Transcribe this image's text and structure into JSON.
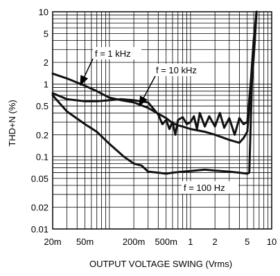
{
  "chart_data": {
    "type": "line",
    "xlabel": "OUTPUT VOLTAGE SWING (Vrms)",
    "ylabel": "THD+N (%)",
    "x_scale": "log",
    "y_scale": "log",
    "xlim": [
      0.02,
      10
    ],
    "ylim": [
      0.01,
      10
    ],
    "grid": true,
    "x_ticks": [
      {
        "value": 0.02,
        "label": "20m"
      },
      {
        "value": 0.05,
        "label": "50m"
      },
      {
        "value": 0.2,
        "label": "200m"
      },
      {
        "value": 0.5,
        "label": "500m"
      },
      {
        "value": 1,
        "label": "1"
      },
      {
        "value": 2,
        "label": "2"
      },
      {
        "value": 5,
        "label": "5"
      },
      {
        "value": 10,
        "label": "10"
      }
    ],
    "y_ticks": [
      {
        "value": 0.01,
        "label": "0.01"
      },
      {
        "value": 0.02,
        "label": "0.02"
      },
      {
        "value": 0.05,
        "label": "0.05"
      },
      {
        "value": 0.1,
        "label": "0.1"
      },
      {
        "value": 0.2,
        "label": "0.2"
      },
      {
        "value": 0.5,
        "label": "0.5"
      },
      {
        "value": 1,
        "label": "1"
      },
      {
        "value": 2,
        "label": "2"
      },
      {
        "value": 5,
        "label": "5"
      },
      {
        "value": 10,
        "label": "10"
      }
    ],
    "series": [
      {
        "name": "f = 1 kHz",
        "color": "#111111",
        "points": [
          [
            0.02,
            1.4
          ],
          [
            0.03,
            1.2
          ],
          [
            0.05,
            0.95
          ],
          [
            0.07,
            0.8
          ],
          [
            0.1,
            0.65
          ],
          [
            0.14,
            0.6
          ],
          [
            0.2,
            0.56
          ],
          [
            0.3,
            0.47
          ],
          [
            0.4,
            0.39
          ],
          [
            0.5,
            0.34
          ],
          [
            0.6,
            0.29
          ],
          [
            0.7,
            0.27
          ],
          [
            0.8,
            0.26
          ],
          [
            1.0,
            0.24
          ],
          [
            1.5,
            0.22
          ],
          [
            2.0,
            0.2
          ],
          [
            3.0,
            0.17
          ],
          [
            4.0,
            0.155
          ],
          [
            4.5,
            0.18
          ],
          [
            5.0,
            0.22
          ],
          [
            5.5,
            0.8
          ],
          [
            6.0,
            3.0
          ],
          [
            6.5,
            10
          ]
        ]
      },
      {
        "name": "f = 10 kHz",
        "color": "#111111",
        "points": [
          [
            0.02,
            0.75
          ],
          [
            0.03,
            0.62
          ],
          [
            0.05,
            0.58
          ],
          [
            0.07,
            0.58
          ],
          [
            0.1,
            0.6
          ],
          [
            0.14,
            0.62
          ],
          [
            0.2,
            0.6
          ],
          [
            0.3,
            0.56
          ],
          [
            0.4,
            0.38
          ],
          [
            0.45,
            0.28
          ],
          [
            0.5,
            0.32
          ],
          [
            0.55,
            0.24
          ],
          [
            0.6,
            0.3
          ],
          [
            0.65,
            0.2
          ],
          [
            0.7,
            0.32
          ],
          [
            0.8,
            0.35
          ],
          [
            0.9,
            0.28
          ],
          [
            1.0,
            0.3
          ],
          [
            1.1,
            0.36
          ],
          [
            1.2,
            0.24
          ],
          [
            1.3,
            0.4
          ],
          [
            1.5,
            0.26
          ],
          [
            1.7,
            0.36
          ],
          [
            2.0,
            0.26
          ],
          [
            2.3,
            0.4
          ],
          [
            2.6,
            0.25
          ],
          [
            3.0,
            0.34
          ],
          [
            3.5,
            0.2
          ],
          [
            4.0,
            0.34
          ],
          [
            4.5,
            0.28
          ],
          [
            5.0,
            0.3
          ],
          [
            5.5,
            1.0
          ],
          [
            6.0,
            4.0
          ],
          [
            6.5,
            10
          ]
        ]
      },
      {
        "name": "f = 100 Hz",
        "color": "#111111",
        "points": [
          [
            0.02,
            0.7
          ],
          [
            0.03,
            0.42
          ],
          [
            0.05,
            0.28
          ],
          [
            0.07,
            0.22
          ],
          [
            0.1,
            0.15
          ],
          [
            0.15,
            0.1
          ],
          [
            0.2,
            0.08
          ],
          [
            0.25,
            0.075
          ],
          [
            0.3,
            0.062
          ],
          [
            0.4,
            0.06
          ],
          [
            0.5,
            0.058
          ],
          [
            0.6,
            0.06
          ],
          [
            0.8,
            0.062
          ],
          [
            1.0,
            0.063
          ],
          [
            1.5,
            0.066
          ],
          [
            2.0,
            0.064
          ],
          [
            3.0,
            0.062
          ],
          [
            4.0,
            0.06
          ],
          [
            5.0,
            0.058
          ],
          [
            5.3,
            0.06
          ],
          [
            5.7,
            1.0
          ],
          [
            6.2,
            4.0
          ],
          [
            6.5,
            10
          ]
        ]
      }
    ],
    "annotations": [
      {
        "text": "f = 1 kHz"
      },
      {
        "text": "f = 10 kHz"
      },
      {
        "text": "f = 100 Hz"
      }
    ]
  }
}
